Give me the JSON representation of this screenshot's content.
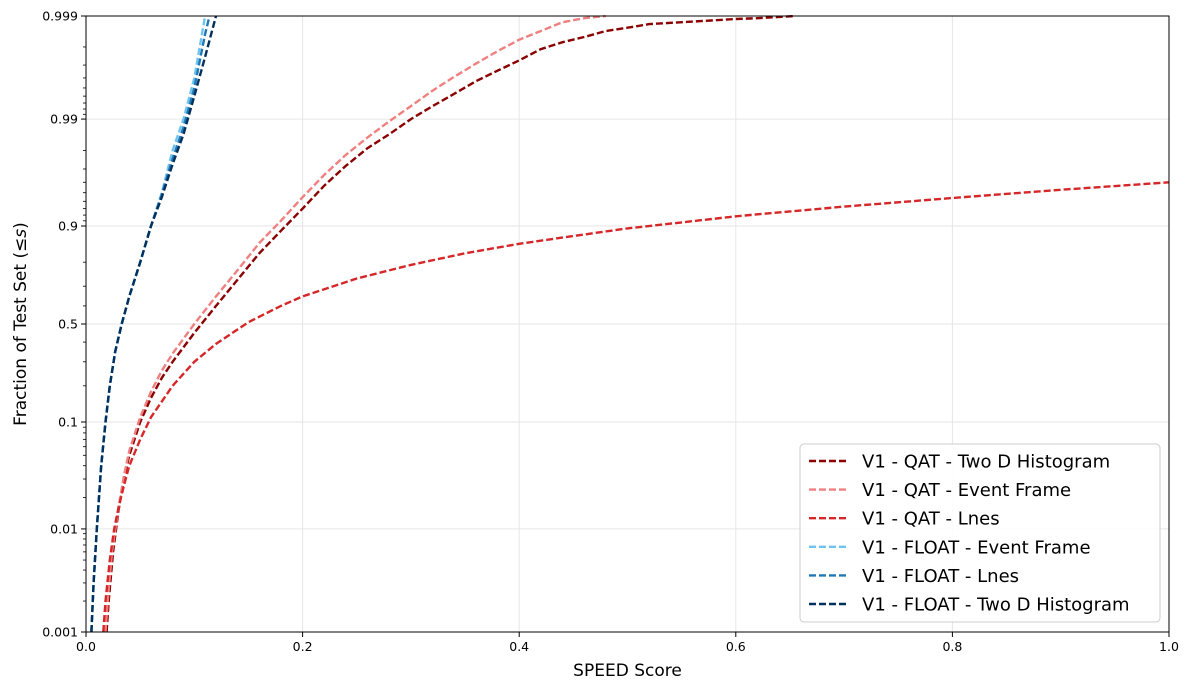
{
  "chart_data": {
    "type": "line",
    "title": "",
    "xlabel": "SPEED Score",
    "ylabel": "Fraction of Test Set (≤s)",
    "ylabel_main": "Fraction of Test Set (",
    "ylabel_sym": "≤",
    "ylabel_var": "s",
    "ylabel_close": ")",
    "xlim": [
      0,
      1
    ],
    "ylim": [
      0.001,
      0.999
    ],
    "yscale": "logit",
    "grid": true,
    "legend_position": "lower-right",
    "x_ticks": [
      {
        "value": 0.0,
        "label": "0.0"
      },
      {
        "value": 0.2,
        "label": "0.2"
      },
      {
        "value": 0.4,
        "label": "0.4"
      },
      {
        "value": 0.6,
        "label": "0.6"
      },
      {
        "value": 0.8,
        "label": "0.8"
      },
      {
        "value": 1.0,
        "label": "1.0"
      }
    ],
    "y_ticks": [
      {
        "value": 0.001,
        "label": "0.001"
      },
      {
        "value": 0.01,
        "label": "0.01"
      },
      {
        "value": 0.1,
        "label": "0.1"
      },
      {
        "value": 0.5,
        "label": "0.5"
      },
      {
        "value": 0.9,
        "label": "0.9"
      },
      {
        "value": 0.99,
        "label": "0.99"
      },
      {
        "value": 0.999,
        "label": "0.999"
      }
    ],
    "series": [
      {
        "name": "V1 - QAT - Two D Histogram",
        "color": "#8b0000",
        "x": [
          0.019,
          0.021,
          0.025,
          0.03,
          0.035,
          0.04,
          0.05,
          0.06,
          0.07,
          0.08,
          0.1,
          0.12,
          0.14,
          0.16,
          0.18,
          0.2,
          0.22,
          0.24,
          0.26,
          0.28,
          0.3,
          0.32,
          0.34,
          0.36,
          0.38,
          0.4,
          0.42,
          0.44,
          0.46,
          0.48,
          0.5,
          0.52,
          0.55,
          0.58,
          0.6,
          0.62,
          0.655
        ],
        "y": [
          0.001,
          0.002,
          0.006,
          0.015,
          0.03,
          0.05,
          0.1,
          0.16,
          0.23,
          0.3,
          0.45,
          0.6,
          0.73,
          0.83,
          0.89,
          0.93,
          0.957,
          0.972,
          0.981,
          0.986,
          0.99,
          0.9925,
          0.9943,
          0.9957,
          0.9966,
          0.9973,
          0.9979,
          0.9982,
          0.9984,
          0.9986,
          0.9987,
          0.9988,
          0.99885,
          0.9989,
          0.99893,
          0.99895,
          0.999
        ]
      },
      {
        "name": "V1 - QAT - Event Frame",
        "color": "#f08080",
        "x": [
          0.018,
          0.02,
          0.024,
          0.03,
          0.035,
          0.04,
          0.05,
          0.06,
          0.07,
          0.08,
          0.1,
          0.12,
          0.14,
          0.16,
          0.18,
          0.2,
          0.22,
          0.24,
          0.26,
          0.28,
          0.3,
          0.32,
          0.34,
          0.36,
          0.38,
          0.4,
          0.42,
          0.44,
          0.46,
          0.48
        ],
        "y": [
          0.001,
          0.002,
          0.006,
          0.016,
          0.032,
          0.055,
          0.11,
          0.18,
          0.26,
          0.34,
          0.5,
          0.65,
          0.77,
          0.86,
          0.91,
          0.945,
          0.966,
          0.978,
          0.985,
          0.9895,
          0.9925,
          0.9947,
          0.9961,
          0.9971,
          0.9978,
          0.9983,
          0.9986,
          0.99885,
          0.99895,
          0.999
        ]
      },
      {
        "name": "V1 - QAT - Lnes",
        "color": "#d62728",
        "x": [
          0.016,
          0.018,
          0.022,
          0.026,
          0.03,
          0.035,
          0.04,
          0.05,
          0.06,
          0.08,
          0.1,
          0.12,
          0.15,
          0.18,
          0.2,
          0.25,
          0.3,
          0.35,
          0.4,
          0.45,
          0.5,
          0.55,
          0.6,
          0.7,
          0.8,
          0.9,
          1.0
        ],
        "y": [
          0.001,
          0.002,
          0.005,
          0.01,
          0.016,
          0.026,
          0.04,
          0.07,
          0.11,
          0.2,
          0.3,
          0.39,
          0.51,
          0.6,
          0.65,
          0.735,
          0.79,
          0.83,
          0.858,
          0.878,
          0.895,
          0.907,
          0.918,
          0.933,
          0.944,
          0.953,
          0.96
        ]
      },
      {
        "name": "V1 - FLOAT - Event Frame",
        "color": "#6ec3f0",
        "x": [
          0.005,
          0.007,
          0.01,
          0.014,
          0.018,
          0.022,
          0.027,
          0.033,
          0.04,
          0.05,
          0.06,
          0.07,
          0.08,
          0.09,
          0.1,
          0.105,
          0.11
        ],
        "y": [
          0.001,
          0.003,
          0.01,
          0.04,
          0.1,
          0.2,
          0.35,
          0.5,
          0.65,
          0.8,
          0.9,
          0.95,
          0.98,
          0.99,
          0.996,
          0.998,
          0.999
        ]
      },
      {
        "name": "V1 - FLOAT - Lnes",
        "color": "#1f77b4",
        "x": [
          0.005,
          0.007,
          0.01,
          0.014,
          0.018,
          0.022,
          0.027,
          0.033,
          0.04,
          0.05,
          0.06,
          0.07,
          0.08,
          0.09,
          0.1,
          0.11,
          0.114
        ],
        "y": [
          0.001,
          0.003,
          0.01,
          0.04,
          0.1,
          0.2,
          0.35,
          0.5,
          0.65,
          0.8,
          0.9,
          0.948,
          0.976,
          0.988,
          0.995,
          0.9985,
          0.999
        ]
      },
      {
        "name": "V1 - FLOAT - Two D Histogram",
        "color": "#00305e",
        "x": [
          0.005,
          0.007,
          0.01,
          0.014,
          0.018,
          0.022,
          0.027,
          0.033,
          0.04,
          0.05,
          0.06,
          0.07,
          0.08,
          0.09,
          0.1,
          0.11,
          0.12
        ],
        "y": [
          0.001,
          0.003,
          0.01,
          0.04,
          0.1,
          0.2,
          0.35,
          0.5,
          0.65,
          0.8,
          0.9,
          0.945,
          0.973,
          0.986,
          0.994,
          0.9975,
          0.999
        ]
      }
    ]
  }
}
